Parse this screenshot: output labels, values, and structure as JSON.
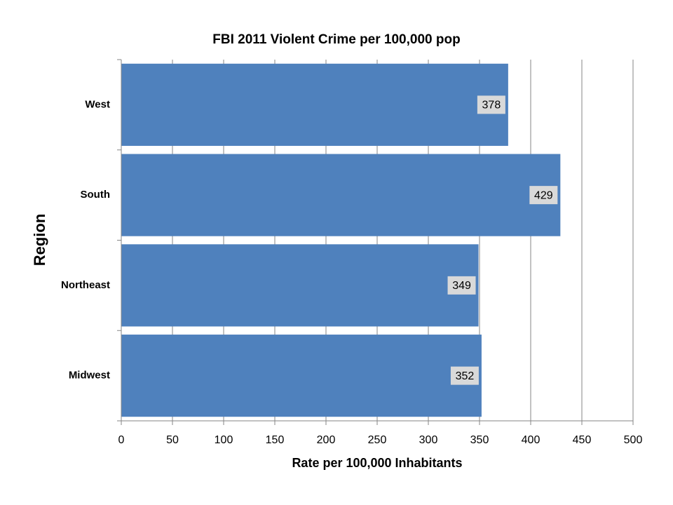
{
  "chart_data": {
    "type": "bar",
    "orientation": "horizontal",
    "title": "FBI 2011 Violent Crime per 100,000 pop",
    "x_label": "Rate per 100,000 Inhabitants",
    "y_label": "Region",
    "categories": [
      "West",
      "South",
      "Northeast",
      "Midwest"
    ],
    "values": [
      378,
      429,
      349,
      352
    ],
    "color": "#4f81bd",
    "xlim": [
      0,
      500
    ],
    "xticks": [
      0,
      50,
      100,
      150,
      200,
      250,
      300,
      350,
      400,
      450,
      500
    ],
    "grid": true
  }
}
